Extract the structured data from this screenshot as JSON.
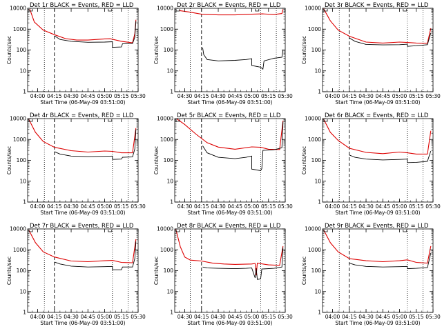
{
  "chart_data": {
    "type": "line",
    "scale_y": "log",
    "ylim": [
      1,
      10000
    ],
    "y_ticks": [
      "1",
      "10",
      "100",
      "1000",
      "10000"
    ],
    "x_ticks": [
      "04:00",
      "04:15",
      "04:30",
      "04:45",
      "05:00",
      "05:15",
      "05:30"
    ],
    "xlabel": "Start Time (06-May-09 03:51:00)",
    "ylabel": "Counts/sec",
    "series_colors": {
      "events": "#000000",
      "lld": "#dd0000"
    },
    "panels": [
      {
        "title": "Det 1r BLACK = Events, RED = LLD",
        "x_first_tick": "04:00",
        "markers": {
          "dotted": [
            "04:06",
            "05:07",
            "05:21"
          ],
          "dashed": [
            "04:15"
          ]
        },
        "events": [
          {
            "t": "04:15",
            "v": 480
          },
          {
            "t": "04:20",
            "v": 320
          },
          {
            "t": "04:30",
            "v": 260
          },
          {
            "t": "04:45",
            "v": 235
          },
          {
            "t": "05:00",
            "v": 240
          },
          {
            "t": "05:07",
            "v": 250
          },
          {
            "t": "05:07",
            "v": 135
          },
          {
            "t": "05:15",
            "v": 140
          },
          {
            "t": "05:16",
            "v": 200
          },
          {
            "t": "05:25",
            "v": 205
          },
          {
            "t": "05:27",
            "v": 400
          },
          {
            "t": "05:28",
            "v": 2400
          }
        ],
        "lld": [
          {
            "t": "03:53",
            "v": 9000
          },
          {
            "t": "03:57",
            "v": 2200
          },
          {
            "t": "04:05",
            "v": 900
          },
          {
            "t": "04:15",
            "v": 540
          },
          {
            "t": "04:25",
            "v": 350
          },
          {
            "t": "04:35",
            "v": 300
          },
          {
            "t": "04:45",
            "v": 300
          },
          {
            "t": "05:00",
            "v": 340
          },
          {
            "t": "05:05",
            "v": 345
          },
          {
            "t": "05:15",
            "v": 260
          },
          {
            "t": "05:25",
            "v": 220
          },
          {
            "t": "05:27",
            "v": 600
          },
          {
            "t": "05:28",
            "v": 2800
          }
        ]
      },
      {
        "title": "Det 2r BLACK = Events, RED = LLD",
        "x_first_tick": "04:30",
        "markers": {
          "dotted": [
            "04:05",
            "05:08",
            "05:22"
          ],
          "dashed": [
            "04:15"
          ]
        },
        "events": [
          {
            "t": "04:16",
            "v": 130
          },
          {
            "t": "04:17",
            "v": 60
          },
          {
            "t": "04:20",
            "v": 35
          },
          {
            "t": "04:30",
            "v": 30
          },
          {
            "t": "04:45",
            "v": 32
          },
          {
            "t": "04:55",
            "v": 35
          },
          {
            "t": "05:00",
            "v": 38
          },
          {
            "t": "05:00",
            "v": 18
          },
          {
            "t": "05:08",
            "v": 15
          },
          {
            "t": "05:10",
            "v": 12
          },
          {
            "t": "05:11",
            "v": 30
          },
          {
            "t": "05:20",
            "v": 40
          },
          {
            "t": "05:27",
            "v": 45
          },
          {
            "t": "05:28",
            "v": 100
          }
        ],
        "lld": [
          {
            "t": "03:55",
            "v": 7800
          },
          {
            "t": "04:05",
            "v": 6500
          },
          {
            "t": "04:15",
            "v": 5200
          },
          {
            "t": "04:30",
            "v": 4800
          },
          {
            "t": "04:45",
            "v": 4800
          },
          {
            "t": "05:00",
            "v": 5200
          },
          {
            "t": "05:10",
            "v": 5400
          },
          {
            "t": "05:20",
            "v": 5000
          },
          {
            "t": "05:27",
            "v": 5600
          },
          {
            "t": "05:28",
            "v": 9000
          }
        ]
      },
      {
        "title": "Det 3r BLACK = Events, RED = LLD",
        "x_first_tick": "04:00",
        "markers": {
          "dotted": [
            "04:06",
            "05:07",
            "05:21"
          ],
          "dashed": [
            "04:15"
          ]
        },
        "events": [
          {
            "t": "04:15",
            "v": 380
          },
          {
            "t": "04:20",
            "v": 260
          },
          {
            "t": "04:30",
            "v": 185
          },
          {
            "t": "04:45",
            "v": 175
          },
          {
            "t": "05:00",
            "v": 180
          },
          {
            "t": "05:07",
            "v": 190
          },
          {
            "t": "05:07",
            "v": 150
          },
          {
            "t": "05:15",
            "v": 160
          },
          {
            "t": "05:25",
            "v": 180
          },
          {
            "t": "05:28",
            "v": 650
          }
        ],
        "lld": [
          {
            "t": "03:52",
            "v": 9500
          },
          {
            "t": "03:58",
            "v": 2500
          },
          {
            "t": "04:05",
            "v": 900
          },
          {
            "t": "04:15",
            "v": 460
          },
          {
            "t": "04:30",
            "v": 240
          },
          {
            "t": "04:45",
            "v": 215
          },
          {
            "t": "05:00",
            "v": 240
          },
          {
            "t": "05:07",
            "v": 230
          },
          {
            "t": "05:15",
            "v": 215
          },
          {
            "t": "05:25",
            "v": 210
          },
          {
            "t": "05:28",
            "v": 1100
          }
        ]
      },
      {
        "title": "Det 4r BLACK = Events, RED = LLD",
        "x_first_tick": "04:00",
        "markers": {
          "dotted": [
            "04:06",
            "05:07",
            "05:21"
          ],
          "dashed": [
            "04:15"
          ]
        },
        "events": [
          {
            "t": "04:15",
            "v": 260
          },
          {
            "t": "04:20",
            "v": 200
          },
          {
            "t": "04:30",
            "v": 160
          },
          {
            "t": "04:45",
            "v": 150
          },
          {
            "t": "05:00",
            "v": 155
          },
          {
            "t": "05:07",
            "v": 160
          },
          {
            "t": "05:07",
            "v": 110
          },
          {
            "t": "05:15",
            "v": 115
          },
          {
            "t": "05:16",
            "v": 140
          },
          {
            "t": "05:25",
            "v": 145
          },
          {
            "t": "05:27",
            "v": 350
          },
          {
            "t": "05:28",
            "v": 3000
          }
        ],
        "lld": [
          {
            "t": "03:52",
            "v": 9500
          },
          {
            "t": "03:58",
            "v": 2200
          },
          {
            "t": "04:05",
            "v": 800
          },
          {
            "t": "04:15",
            "v": 420
          },
          {
            "t": "04:30",
            "v": 290
          },
          {
            "t": "04:45",
            "v": 250
          },
          {
            "t": "05:00",
            "v": 280
          },
          {
            "t": "05:07",
            "v": 270
          },
          {
            "t": "05:15",
            "v": 230
          },
          {
            "t": "05:25",
            "v": 230
          },
          {
            "t": "05:28",
            "v": 3500
          }
        ]
      },
      {
        "title": "Det 5r BLACK = Events, RED = LLD",
        "x_first_tick": "04:30",
        "markers": {
          "dotted": [
            "04:05",
            "05:08",
            "05:22"
          ],
          "dashed": [
            "04:15"
          ]
        },
        "events": [
          {
            "t": "04:16",
            "v": 500
          },
          {
            "t": "04:20",
            "v": 230
          },
          {
            "t": "04:30",
            "v": 140
          },
          {
            "t": "04:45",
            "v": 120
          },
          {
            "t": "04:55",
            "v": 140
          },
          {
            "t": "05:00",
            "v": 160
          },
          {
            "t": "05:00",
            "v": 38
          },
          {
            "t": "05:08",
            "v": 32
          },
          {
            "t": "05:09",
            "v": 40
          },
          {
            "t": "05:10",
            "v": 300
          },
          {
            "t": "05:20",
            "v": 320
          },
          {
            "t": "05:27",
            "v": 400
          },
          {
            "t": "05:28",
            "v": 7000
          }
        ],
        "lld": [
          {
            "t": "03:53",
            "v": 9600
          },
          {
            "t": "04:00",
            "v": 5200
          },
          {
            "t": "04:10",
            "v": 1800
          },
          {
            "t": "04:20",
            "v": 700
          },
          {
            "t": "04:30",
            "v": 430
          },
          {
            "t": "04:45",
            "v": 340
          },
          {
            "t": "05:00",
            "v": 440
          },
          {
            "t": "05:08",
            "v": 420
          },
          {
            "t": "05:15",
            "v": 340
          },
          {
            "t": "05:25",
            "v": 330
          },
          {
            "t": "05:28",
            "v": 8000
          }
        ]
      },
      {
        "title": "Det 6r BLACK = Events, RED = LLD",
        "x_first_tick": "04:00",
        "markers": {
          "dotted": [
            "04:06",
            "05:07",
            "05:21"
          ],
          "dashed": [
            "04:15"
          ]
        },
        "events": [
          {
            "t": "04:15",
            "v": 180
          },
          {
            "t": "04:20",
            "v": 140
          },
          {
            "t": "04:30",
            "v": 115
          },
          {
            "t": "04:45",
            "v": 105
          },
          {
            "t": "05:00",
            "v": 110
          },
          {
            "t": "05:07",
            "v": 115
          },
          {
            "t": "05:07",
            "v": 78
          },
          {
            "t": "05:15",
            "v": 80
          },
          {
            "t": "05:25",
            "v": 90
          },
          {
            "t": "05:28",
            "v": 280
          }
        ],
        "lld": [
          {
            "t": "03:52",
            "v": 9500
          },
          {
            "t": "03:58",
            "v": 2200
          },
          {
            "t": "04:05",
            "v": 900
          },
          {
            "t": "04:15",
            "v": 380
          },
          {
            "t": "04:30",
            "v": 240
          },
          {
            "t": "04:45",
            "v": 210
          },
          {
            "t": "05:00",
            "v": 250
          },
          {
            "t": "05:07",
            "v": 230
          },
          {
            "t": "05:15",
            "v": 200
          },
          {
            "t": "05:25",
            "v": 200
          },
          {
            "t": "05:28",
            "v": 2600
          }
        ]
      },
      {
        "title": "Det 7r BLACK = Events, RED = LLD",
        "x_first_tick": "04:00",
        "markers": {
          "dotted": [
            "04:06",
            "05:07",
            "05:21"
          ],
          "dashed": [
            "04:15"
          ]
        },
        "events": [
          {
            "t": "04:15",
            "v": 260
          },
          {
            "t": "04:20",
            "v": 210
          },
          {
            "t": "04:30",
            "v": 165
          },
          {
            "t": "04:45",
            "v": 150
          },
          {
            "t": "05:00",
            "v": 155
          },
          {
            "t": "05:07",
            "v": 160
          },
          {
            "t": "05:07",
            "v": 110
          },
          {
            "t": "05:15",
            "v": 110
          },
          {
            "t": "05:16",
            "v": 150
          },
          {
            "t": "05:25",
            "v": 150
          },
          {
            "t": "05:27",
            "v": 380
          },
          {
            "t": "05:28",
            "v": 2500
          }
        ],
        "lld": [
          {
            "t": "03:52",
            "v": 9000
          },
          {
            "t": "03:58",
            "v": 2200
          },
          {
            "t": "04:05",
            "v": 800
          },
          {
            "t": "04:15",
            "v": 450
          },
          {
            "t": "04:30",
            "v": 290
          },
          {
            "t": "04:45",
            "v": 270
          },
          {
            "t": "05:00",
            "v": 300
          },
          {
            "t": "05:07",
            "v": 310
          },
          {
            "t": "05:15",
            "v": 250
          },
          {
            "t": "05:25",
            "v": 240
          },
          {
            "t": "05:28",
            "v": 3200
          }
        ]
      },
      {
        "title": "Det 8r BLACK = Events, RED = LLD",
        "x_first_tick": "04:30",
        "markers": {
          "dotted": [
            "04:05",
            "05:08",
            "05:22"
          ],
          "dashed": [
            "04:15"
          ]
        },
        "events": [
          {
            "t": "04:16",
            "v": 150
          },
          {
            "t": "04:20",
            "v": 135
          },
          {
            "t": "04:30",
            "v": 130
          },
          {
            "t": "04:45",
            "v": 125
          },
          {
            "t": "04:55",
            "v": 130
          },
          {
            "t": "05:00",
            "v": 135
          },
          {
            "t": "05:03",
            "v": 45
          },
          {
            "t": "05:04",
            "v": 130
          },
          {
            "t": "05:05",
            "v": 38
          },
          {
            "t": "05:08",
            "v": 40
          },
          {
            "t": "05:09",
            "v": 120
          },
          {
            "t": "05:20",
            "v": 130
          },
          {
            "t": "05:27",
            "v": 150
          },
          {
            "t": "05:28",
            "v": 1300
          }
        ],
        "lld": [
          {
            "t": "03:52",
            "v": 9600
          },
          {
            "t": "03:56",
            "v": 1400
          },
          {
            "t": "04:00",
            "v": 450
          },
          {
            "t": "04:05",
            "v": 320
          },
          {
            "t": "04:15",
            "v": 290
          },
          {
            "t": "04:25",
            "v": 230
          },
          {
            "t": "04:35",
            "v": 210
          },
          {
            "t": "04:45",
            "v": 200
          },
          {
            "t": "05:00",
            "v": 210
          },
          {
            "t": "05:03",
            "v": 220
          },
          {
            "t": "05:04",
            "v": 60
          },
          {
            "t": "05:05",
            "v": 230
          },
          {
            "t": "05:15",
            "v": 190
          },
          {
            "t": "05:25",
            "v": 180
          },
          {
            "t": "05:28",
            "v": 1500
          }
        ]
      },
      {
        "title": "Det 9r BLACK = Events, RED = LLD",
        "x_first_tick": "04:00",
        "markers": {
          "dotted": [
            "04:06",
            "05:07",
            "05:21"
          ],
          "dashed": [
            "04:15"
          ]
        },
        "events": [
          {
            "t": "04:15",
            "v": 230
          },
          {
            "t": "04:20",
            "v": 190
          },
          {
            "t": "04:30",
            "v": 160
          },
          {
            "t": "04:45",
            "v": 150
          },
          {
            "t": "05:00",
            "v": 155
          },
          {
            "t": "05:07",
            "v": 160
          },
          {
            "t": "05:07",
            "v": 125
          },
          {
            "t": "05:15",
            "v": 130
          },
          {
            "t": "05:25",
            "v": 140
          },
          {
            "t": "05:28",
            "v": 700
          }
        ],
        "lld": [
          {
            "t": "03:52",
            "v": 9000
          },
          {
            "t": "03:58",
            "v": 2200
          },
          {
            "t": "04:05",
            "v": 800
          },
          {
            "t": "04:15",
            "v": 380
          },
          {
            "t": "04:30",
            "v": 300
          },
          {
            "t": "04:45",
            "v": 270
          },
          {
            "t": "05:00",
            "v": 300
          },
          {
            "t": "05:07",
            "v": 330
          },
          {
            "t": "05:15",
            "v": 250
          },
          {
            "t": "05:25",
            "v": 230
          },
          {
            "t": "05:28",
            "v": 1500
          }
        ]
      }
    ]
  }
}
